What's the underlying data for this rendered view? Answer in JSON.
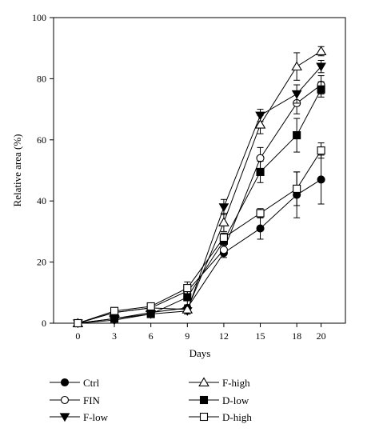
{
  "chart_data": {
    "type": "line",
    "xlabel": "Days",
    "ylabel": "Relative area (%)",
    "x": [
      0,
      3,
      6,
      9,
      12,
      15,
      18,
      20
    ],
    "xticks": [
      "0",
      "3",
      "6",
      "9",
      "12",
      "15",
      "18",
      "20"
    ],
    "xlim": [
      -2,
      22
    ],
    "ylim": [
      0,
      100
    ],
    "yticks": [
      "0",
      "20",
      "40",
      "60",
      "80",
      "100"
    ],
    "grid": false,
    "legend_position": "bottom",
    "series": [
      {
        "name": "Ctrl",
        "marker": "filled-circle",
        "values": [
          0,
          1.5,
          3.5,
          5,
          23,
          31,
          42,
          47
        ],
        "errors": [
          0,
          0.5,
          0.6,
          1,
          1.5,
          3.5,
          7.5,
          8
        ]
      },
      {
        "name": "FIN",
        "marker": "open-circle",
        "values": [
          0,
          3.5,
          5,
          10.5,
          24,
          54,
          72,
          78
        ],
        "errors": [
          0,
          0.5,
          0.6,
          1.5,
          1.5,
          3.5,
          3.5,
          3
        ]
      },
      {
        "name": "F-low",
        "marker": "filled-triangle-down",
        "values": [
          0,
          1,
          3,
          4,
          38,
          68,
          75,
          84
        ],
        "errors": [
          0,
          0.5,
          0.5,
          1,
          2.5,
          2,
          3,
          2
        ]
      },
      {
        "name": "F-high",
        "marker": "open-triangle-up",
        "values": [
          0,
          3.5,
          5,
          4.5,
          33,
          65,
          84,
          89
        ],
        "errors": [
          0,
          0.5,
          0.6,
          1.5,
          3,
          3,
          4.5,
          1.5
        ]
      },
      {
        "name": "D-low",
        "marker": "filled-square",
        "values": [
          0,
          1.5,
          3,
          8.5,
          27,
          49.5,
          61.5,
          76.5
        ],
        "errors": [
          0,
          0.5,
          0.5,
          3,
          1.5,
          3.5,
          5.5,
          2.5
        ]
      },
      {
        "name": "D-high",
        "marker": "open-square",
        "values": [
          0,
          4,
          5.5,
          11.5,
          28,
          36,
          44,
          56.5
        ],
        "errors": [
          0,
          0.5,
          0.6,
          2,
          1.5,
          1.5,
          5.5,
          2.5
        ]
      }
    ]
  }
}
